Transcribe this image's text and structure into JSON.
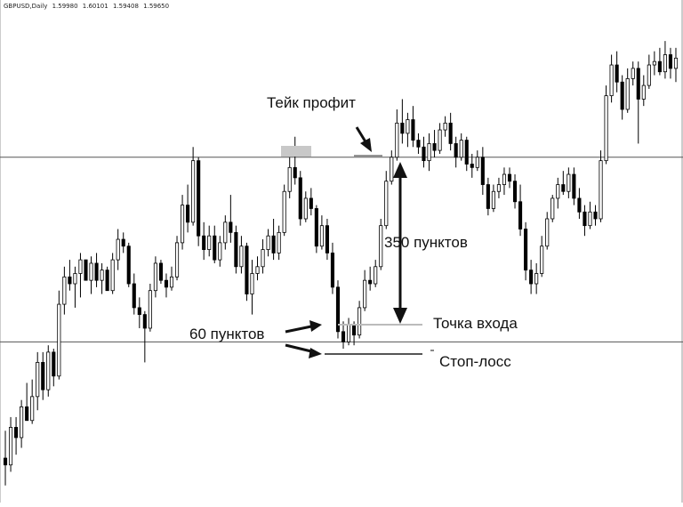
{
  "header": {
    "symbol": "GBPUSD,Daily",
    "open": "1.59980",
    "high": "1.60101",
    "low": "1.59408",
    "close": "1.59650"
  },
  "annotations": {
    "take_profit": "Тейк профит",
    "pips_350": "350 пунктов",
    "entry_point": "Точка входа",
    "pips_60": "60 пунктов",
    "stop_loss": "Стоп-лосс"
  },
  "colors": {
    "bull_fill": "#ffffff",
    "bear_fill": "#000000",
    "outline": "#000000",
    "level_line": "#555555",
    "entry_line": "#bbbbbb",
    "marker": "#c8c8c8"
  },
  "chart_data": {
    "type": "candlestick",
    "symbol": "GBPUSD",
    "timeframe": "Daily",
    "title": "GBPUSD,Daily 1.59980 1.60101 1.59408 1.59650",
    "candles": [
      {
        "o": 0.8,
        "h": 1.6,
        "l": 0.0,
        "c": 0.6
      },
      {
        "o": 0.6,
        "h": 2.0,
        "l": 0.4,
        "c": 1.7
      },
      {
        "o": 1.7,
        "h": 2.0,
        "l": 0.9,
        "c": 1.4
      },
      {
        "o": 1.4,
        "h": 2.5,
        "l": 1.1,
        "c": 2.3
      },
      {
        "o": 2.3,
        "h": 3.0,
        "l": 1.9,
        "c": 1.9
      },
      {
        "o": 1.9,
        "h": 3.1,
        "l": 1.8,
        "c": 2.6
      },
      {
        "o": 2.6,
        "h": 3.9,
        "l": 2.2,
        "c": 3.6
      },
      {
        "o": 3.6,
        "h": 3.9,
        "l": 2.5,
        "c": 2.8
      },
      {
        "o": 2.8,
        "h": 4.1,
        "l": 2.6,
        "c": 3.9
      },
      {
        "o": 3.9,
        "h": 4.0,
        "l": 2.9,
        "c": 3.2
      },
      {
        "o": 3.2,
        "h": 5.7,
        "l": 3.1,
        "c": 5.3
      },
      {
        "o": 5.3,
        "h": 6.4,
        "l": 5.0,
        "c": 6.1
      },
      {
        "o": 6.1,
        "h": 6.6,
        "l": 5.7,
        "c": 5.9
      },
      {
        "o": 5.9,
        "h": 6.4,
        "l": 5.2,
        "c": 6.2
      },
      {
        "o": 6.2,
        "h": 6.8,
        "l": 5.5,
        "c": 6.6
      },
      {
        "o": 6.6,
        "h": 6.6,
        "l": 6.0,
        "c": 6.0
      },
      {
        "o": 6.0,
        "h": 6.7,
        "l": 5.6,
        "c": 6.5
      },
      {
        "o": 6.5,
        "h": 6.8,
        "l": 5.8,
        "c": 6.0
      },
      {
        "o": 6.0,
        "h": 6.5,
        "l": 5.6,
        "c": 6.3
      },
      {
        "o": 6.3,
        "h": 6.4,
        "l": 5.7,
        "c": 5.7
      },
      {
        "o": 5.7,
        "h": 6.8,
        "l": 5.6,
        "c": 6.6
      },
      {
        "o": 6.6,
        "h": 7.5,
        "l": 6.3,
        "c": 7.2
      },
      {
        "o": 7.2,
        "h": 7.4,
        "l": 6.8,
        "c": 7.0
      },
      {
        "o": 7.0,
        "h": 7.1,
        "l": 5.8,
        "c": 5.9
      },
      {
        "o": 5.9,
        "h": 6.2,
        "l": 5.0,
        "c": 5.2
      },
      {
        "o": 5.2,
        "h": 5.5,
        "l": 4.6,
        "c": 5.0
      },
      {
        "o": 5.0,
        "h": 5.1,
        "l": 3.6,
        "c": 4.6
      },
      {
        "o": 4.6,
        "h": 5.9,
        "l": 4.5,
        "c": 5.7
      },
      {
        "o": 5.7,
        "h": 6.7,
        "l": 5.5,
        "c": 6.5
      },
      {
        "o": 6.5,
        "h": 6.6,
        "l": 5.9,
        "c": 6.0
      },
      {
        "o": 6.0,
        "h": 6.2,
        "l": 5.5,
        "c": 5.8
      },
      {
        "o": 5.8,
        "h": 6.4,
        "l": 5.7,
        "c": 6.1
      },
      {
        "o": 6.1,
        "h": 7.3,
        "l": 6.0,
        "c": 7.1
      },
      {
        "o": 7.1,
        "h": 8.5,
        "l": 6.9,
        "c": 8.2
      },
      {
        "o": 8.2,
        "h": 8.8,
        "l": 7.4,
        "c": 7.7
      },
      {
        "o": 7.7,
        "h": 9.9,
        "l": 7.6,
        "c": 9.5
      },
      {
        "o": 9.5,
        "h": 9.6,
        "l": 7.0,
        "c": 7.3
      },
      {
        "o": 7.3,
        "h": 7.7,
        "l": 6.6,
        "c": 6.9
      },
      {
        "o": 6.9,
        "h": 7.6,
        "l": 6.7,
        "c": 7.3
      },
      {
        "o": 7.3,
        "h": 7.6,
        "l": 6.5,
        "c": 6.6
      },
      {
        "o": 6.6,
        "h": 7.3,
        "l": 6.4,
        "c": 7.1
      },
      {
        "o": 7.1,
        "h": 7.9,
        "l": 6.9,
        "c": 7.7
      },
      {
        "o": 7.7,
        "h": 8.5,
        "l": 7.1,
        "c": 7.4
      },
      {
        "o": 7.4,
        "h": 7.6,
        "l": 6.2,
        "c": 6.4
      },
      {
        "o": 6.4,
        "h": 7.3,
        "l": 6.2,
        "c": 7.0
      },
      {
        "o": 7.0,
        "h": 7.1,
        "l": 5.4,
        "c": 5.6
      },
      {
        "o": 5.6,
        "h": 6.6,
        "l": 5.0,
        "c": 6.2
      },
      {
        "o": 6.2,
        "h": 6.7,
        "l": 6.0,
        "c": 6.4
      },
      {
        "o": 6.4,
        "h": 7.2,
        "l": 6.2,
        "c": 6.9
      },
      {
        "o": 6.9,
        "h": 7.5,
        "l": 6.7,
        "c": 7.3
      },
      {
        "o": 7.3,
        "h": 7.8,
        "l": 6.6,
        "c": 6.8
      },
      {
        "o": 6.8,
        "h": 7.6,
        "l": 6.6,
        "c": 7.4
      },
      {
        "o": 7.4,
        "h": 8.8,
        "l": 7.3,
        "c": 8.6
      },
      {
        "o": 8.6,
        "h": 9.6,
        "l": 8.4,
        "c": 9.3
      },
      {
        "o": 9.3,
        "h": 10.2,
        "l": 8.8,
        "c": 9.0
      },
      {
        "o": 9.0,
        "h": 9.2,
        "l": 7.6,
        "c": 7.8
      },
      {
        "o": 7.8,
        "h": 8.6,
        "l": 7.7,
        "c": 8.4
      },
      {
        "o": 8.4,
        "h": 8.7,
        "l": 7.9,
        "c": 8.1
      },
      {
        "o": 8.1,
        "h": 8.2,
        "l": 6.8,
        "c": 7.0
      },
      {
        "o": 7.0,
        "h": 7.9,
        "l": 6.9,
        "c": 7.6
      },
      {
        "o": 7.6,
        "h": 7.8,
        "l": 6.6,
        "c": 6.8
      },
      {
        "o": 6.8,
        "h": 7.1,
        "l": 5.6,
        "c": 5.8
      },
      {
        "o": 5.8,
        "h": 6.0,
        "l": 4.3,
        "c": 4.5
      },
      {
        "o": 4.5,
        "h": 4.8,
        "l": 4.0,
        "c": 4.2
      },
      {
        "o": 4.2,
        "h": 4.9,
        "l": 4.1,
        "c": 4.7
      },
      {
        "o": 4.7,
        "h": 4.8,
        "l": 4.1,
        "c": 4.4
      },
      {
        "o": 4.4,
        "h": 5.4,
        "l": 4.3,
        "c": 5.2
      },
      {
        "o": 5.2,
        "h": 6.3,
        "l": 5.1,
        "c": 6.0
      },
      {
        "o": 6.0,
        "h": 6.4,
        "l": 5.7,
        "c": 5.9
      },
      {
        "o": 5.9,
        "h": 6.6,
        "l": 5.8,
        "c": 6.4
      },
      {
        "o": 6.4,
        "h": 7.8,
        "l": 6.3,
        "c": 7.6
      },
      {
        "o": 7.6,
        "h": 9.2,
        "l": 7.5,
        "c": 8.9
      },
      {
        "o": 8.9,
        "h": 9.8,
        "l": 8.8,
        "c": 9.6
      },
      {
        "o": 9.6,
        "h": 11.0,
        "l": 9.5,
        "c": 10.6
      },
      {
        "o": 10.6,
        "h": 11.3,
        "l": 10.0,
        "c": 10.3
      },
      {
        "o": 10.3,
        "h": 10.9,
        "l": 9.9,
        "c": 10.7
      },
      {
        "o": 10.7,
        "h": 11.1,
        "l": 9.9,
        "c": 10.1
      },
      {
        "o": 10.1,
        "h": 10.3,
        "l": 9.7,
        "c": 9.9
      },
      {
        "o": 9.9,
        "h": 10.2,
        "l": 9.3,
        "c": 9.5
      },
      {
        "o": 9.5,
        "h": 10.3,
        "l": 9.2,
        "c": 10.0
      },
      {
        "o": 10.0,
        "h": 10.4,
        "l": 9.6,
        "c": 9.8
      },
      {
        "o": 9.8,
        "h": 10.6,
        "l": 9.7,
        "c": 10.4
      },
      {
        "o": 10.4,
        "h": 10.8,
        "l": 10.2,
        "c": 10.6
      },
      {
        "o": 10.6,
        "h": 10.9,
        "l": 9.8,
        "c": 10.0
      },
      {
        "o": 10.0,
        "h": 10.2,
        "l": 9.3,
        "c": 9.6
      },
      {
        "o": 9.6,
        "h": 10.3,
        "l": 9.5,
        "c": 10.1
      },
      {
        "o": 10.1,
        "h": 10.2,
        "l": 9.2,
        "c": 9.4
      },
      {
        "o": 9.4,
        "h": 9.7,
        "l": 9.0,
        "c": 9.3
      },
      {
        "o": 9.3,
        "h": 9.8,
        "l": 9.2,
        "c": 9.6
      },
      {
        "o": 9.6,
        "h": 9.9,
        "l": 8.5,
        "c": 8.8
      },
      {
        "o": 8.8,
        "h": 9.0,
        "l": 7.9,
        "c": 8.1
      },
      {
        "o": 8.1,
        "h": 8.8,
        "l": 8.0,
        "c": 8.6
      },
      {
        "o": 8.6,
        "h": 9.0,
        "l": 8.4,
        "c": 8.8
      },
      {
        "o": 8.8,
        "h": 9.3,
        "l": 8.5,
        "c": 9.1
      },
      {
        "o": 9.1,
        "h": 9.3,
        "l": 8.7,
        "c": 8.9
      },
      {
        "o": 8.9,
        "h": 9.1,
        "l": 8.1,
        "c": 8.3
      },
      {
        "o": 8.3,
        "h": 8.8,
        "l": 7.3,
        "c": 7.5
      },
      {
        "o": 7.5,
        "h": 7.7,
        "l": 6.0,
        "c": 6.3
      },
      {
        "o": 6.3,
        "h": 6.6,
        "l": 5.6,
        "c": 5.9
      },
      {
        "o": 5.9,
        "h": 6.5,
        "l": 5.6,
        "c": 6.2
      },
      {
        "o": 6.2,
        "h": 7.3,
        "l": 6.1,
        "c": 7.0
      },
      {
        "o": 7.0,
        "h": 8.0,
        "l": 6.9,
        "c": 7.8
      },
      {
        "o": 7.8,
        "h": 8.5,
        "l": 7.7,
        "c": 8.4
      },
      {
        "o": 8.4,
        "h": 9.0,
        "l": 8.1,
        "c": 8.8
      },
      {
        "o": 8.8,
        "h": 9.2,
        "l": 8.5,
        "c": 8.6
      },
      {
        "o": 8.6,
        "h": 9.3,
        "l": 8.4,
        "c": 9.1
      },
      {
        "o": 9.1,
        "h": 9.3,
        "l": 8.2,
        "c": 8.4
      },
      {
        "o": 8.4,
        "h": 8.7,
        "l": 7.8,
        "c": 8.0
      },
      {
        "o": 8.0,
        "h": 8.2,
        "l": 7.3,
        "c": 7.6
      },
      {
        "o": 7.6,
        "h": 8.3,
        "l": 7.5,
        "c": 8.0
      },
      {
        "o": 8.0,
        "h": 8.2,
        "l": 7.6,
        "c": 7.8
      },
      {
        "o": 7.8,
        "h": 9.8,
        "l": 7.7,
        "c": 9.5
      },
      {
        "o": 9.5,
        "h": 11.7,
        "l": 9.4,
        "c": 11.4
      },
      {
        "o": 11.4,
        "h": 12.6,
        "l": 11.2,
        "c": 12.3
      },
      {
        "o": 12.3,
        "h": 12.7,
        "l": 11.5,
        "c": 11.8
      },
      {
        "o": 11.8,
        "h": 12.0,
        "l": 10.7,
        "c": 11.0
      },
      {
        "o": 11.0,
        "h": 12.2,
        "l": 10.9,
        "c": 11.9
      },
      {
        "o": 11.9,
        "h": 12.4,
        "l": 11.7,
        "c": 12.2
      },
      {
        "o": 12.2,
        "h": 12.4,
        "l": 10.0,
        "c": 11.3
      },
      {
        "o": 11.3,
        "h": 12.0,
        "l": 11.1,
        "c": 11.7
      },
      {
        "o": 11.7,
        "h": 12.6,
        "l": 11.6,
        "c": 12.3
      },
      {
        "o": 12.3,
        "h": 12.7,
        "l": 12.0,
        "c": 12.4
      },
      {
        "o": 12.4,
        "h": 12.8,
        "l": 12.0,
        "c": 12.1
      },
      {
        "o": 12.1,
        "h": 13.0,
        "l": 11.9,
        "c": 12.6
      },
      {
        "o": 12.6,
        "h": 12.8,
        "l": 11.9,
        "c": 12.2
      },
      {
        "o": 12.2,
        "h": 12.8,
        "l": 11.8,
        "c": 12.5
      }
    ],
    "levels": [
      {
        "y": 9.6
      },
      {
        "y": 4.2
      }
    ],
    "price_range": [
      -0.5,
      14.2
    ]
  }
}
